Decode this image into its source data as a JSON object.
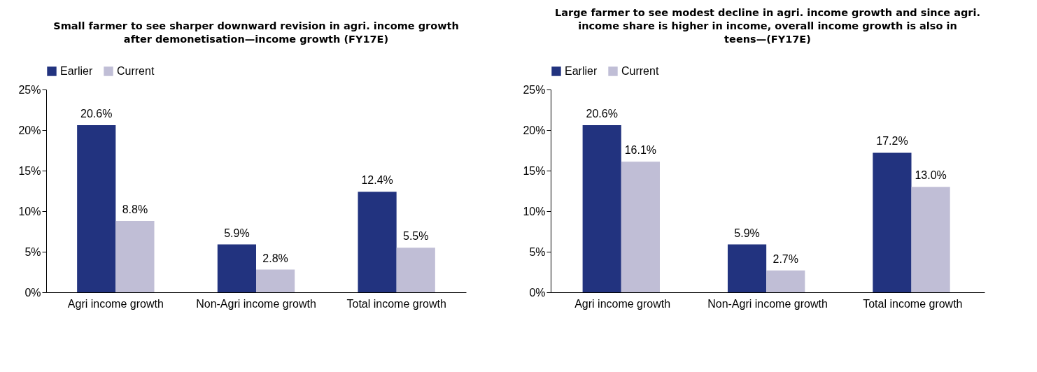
{
  "chart_data": [
    {
      "type": "bar",
      "title": "Small farmer to see sharper downward revision in agri. income growth after demonetisation—income growth (FY17E)",
      "categories": [
        "Agri income growth",
        "Non-Agri income growth",
        "Total income growth"
      ],
      "series": [
        {
          "name": "Earlier",
          "color": "#22337f",
          "values": [
            20.6,
            5.9,
            12.4
          ],
          "value_labels": [
            "20.6%",
            "5.9%",
            "12.4%"
          ]
        },
        {
          "name": "Current",
          "color": "#c0bed6",
          "values": [
            8.8,
            2.8,
            5.5
          ],
          "value_labels": [
            "8.8%",
            "2.8%",
            "5.5%"
          ]
        }
      ],
      "ylim": [
        0,
        25
      ],
      "yticks": [
        {
          "value": 0,
          "label": "0%"
        },
        {
          "value": 5,
          "label": "5%"
        },
        {
          "value": 10,
          "label": "10%"
        },
        {
          "value": 15,
          "label": "15%"
        },
        {
          "value": 20,
          "label": "20%"
        },
        {
          "value": 25,
          "label": "25%"
        }
      ],
      "legend": "top",
      "grid": false
    },
    {
      "type": "bar",
      "title": "Large farmer to see modest decline in agri. income growth and since agri. income share is higher in income, overall income growth is also in teens—(FY17E)",
      "categories": [
        "Agri income growth",
        "Non-Agri income growth",
        "Total income growth"
      ],
      "series": [
        {
          "name": "Earlier",
          "color": "#22337f",
          "values": [
            20.6,
            5.9,
            17.2
          ],
          "value_labels": [
            "20.6%",
            "5.9%",
            "17.2%"
          ]
        },
        {
          "name": "Current",
          "color": "#c0bed6",
          "values": [
            16.1,
            2.7,
            13.0
          ],
          "value_labels": [
            "16.1%",
            "2.7%",
            "13.0%"
          ]
        }
      ],
      "ylim": [
        0,
        25
      ],
      "yticks": [
        {
          "value": 0,
          "label": "0%"
        },
        {
          "value": 5,
          "label": "5%"
        },
        {
          "value": 10,
          "label": "10%"
        },
        {
          "value": 15,
          "label": "15%"
        },
        {
          "value": 20,
          "label": "20%"
        },
        {
          "value": 25,
          "label": "25%"
        }
      ],
      "legend": "top",
      "grid": false
    }
  ]
}
